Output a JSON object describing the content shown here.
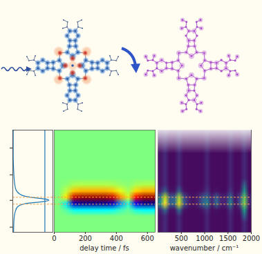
{
  "chart_data": [
    {
      "type": "line",
      "y": [
        0,
        0.5,
        0.8,
        1.0,
        1.1,
        1.15,
        1.2,
        1.25,
        1.3,
        1.35,
        1.4,
        1.5,
        1.7,
        2.0,
        2.5,
        3.0,
        3.5,
        4.0
      ],
      "series": [
        {
          "color": "#1f77b4",
          "values": [
            0.02,
            0.03,
            0.06,
            0.12,
            0.25,
            0.45,
            0.75,
            0.9,
            0.82,
            0.55,
            0.33,
            0.17,
            0.07,
            0.04,
            0.02,
            0.01,
            0.01,
            0.01
          ]
        },
        {
          "color": "#1f77b4",
          "values": [
            0.8,
            0.8,
            0.8,
            0.8,
            0.8,
            0.8,
            0.8,
            0.8,
            0.8,
            0.8,
            0.8,
            0.8,
            0.8,
            0.8,
            0.8,
            0.8,
            0.8,
            0.8
          ]
        }
      ],
      "xlim": [
        0,
        1
      ],
      "ylim": [
        0,
        4
      ],
      "yticks": [
        0.2,
        1.25,
        2.25,
        3.3
      ],
      "tick_labels": false,
      "reference_lines": [
        1.1,
        1.37
      ]
    },
    {
      "type": "heatmap",
      "x_label": "delay time / fs",
      "xlim": [
        0,
        650
      ],
      "xticks": [
        0,
        200,
        400,
        600
      ],
      "ylim": [
        0,
        4
      ],
      "tick_labels": "x",
      "color_range": [
        -1,
        1
      ],
      "cells": [
        [
          0,
          0,
          0,
          0,
          0,
          0,
          0,
          0,
          0,
          0,
          0,
          0,
          0
        ],
        [
          0,
          0,
          0,
          0,
          0,
          0,
          0,
          0,
          0,
          0,
          0,
          0,
          0
        ],
        [
          0,
          0,
          0,
          0,
          0,
          0,
          0,
          0,
          0,
          0,
          0,
          0,
          0
        ],
        [
          0,
          0,
          0,
          0,
          0,
          0,
          0,
          0,
          0,
          0,
          0,
          0,
          0
        ],
        [
          0,
          0,
          0,
          0,
          0,
          0,
          0,
          0,
          0,
          0,
          0,
          0,
          0
        ],
        [
          0,
          0,
          0,
          0,
          0,
          0,
          0,
          0,
          0,
          0,
          0,
          0,
          0
        ],
        [
          0,
          0,
          0,
          0,
          0,
          0,
          0,
          0,
          0,
          0,
          0,
          0,
          0
        ],
        [
          0,
          0,
          0,
          0,
          0,
          0,
          0,
          0,
          0,
          0,
          0,
          0,
          0
        ],
        [
          0,
          0.03,
          0.09,
          0.1,
          0.1,
          0.1,
          0.1,
          0.09,
          0.05,
          0.02,
          0.08,
          0.1,
          0.1
        ],
        [
          0,
          0.12,
          0.36,
          0.4,
          0.4,
          0.4,
          0.4,
          0.36,
          0.2,
          0.08,
          0.32,
          0.4,
          0.4
        ],
        [
          0,
          0.29,
          0.86,
          0.95,
          0.95,
          0.95,
          0.95,
          0.86,
          0.48,
          0.19,
          0.76,
          0.95,
          0.95
        ],
        [
          0,
          -0.29,
          -0.86,
          -0.95,
          -0.95,
          -0.95,
          -0.95,
          -0.86,
          -0.48,
          -0.19,
          -0.76,
          -0.95,
          -0.95
        ],
        [
          0,
          -0.08,
          -0.23,
          -0.25,
          -0.25,
          -0.25,
          -0.25,
          -0.23,
          -0.13,
          -0.05,
          -0.2,
          -0.25,
          -0.25
        ],
        [
          0,
          0,
          0,
          0,
          0,
          0,
          0,
          0,
          0,
          0,
          0,
          0,
          0
        ],
        [
          0,
          0,
          0,
          0,
          0,
          0,
          0,
          0,
          0,
          0,
          0,
          0,
          0
        ],
        [
          0,
          0,
          0,
          0,
          0,
          0,
          0,
          0,
          0,
          0,
          0,
          0,
          0
        ]
      ],
      "reference_lines": [
        1.1,
        1.37
      ]
    },
    {
      "type": "heatmap",
      "x_label": "wavenumber / cm⁻¹",
      "xlim": [
        0,
        2000
      ],
      "xticks": [
        500,
        1000,
        1500,
        2000
      ],
      "ylim": [
        0,
        4
      ],
      "tick_labels": "x",
      "color_range": [
        0,
        1
      ],
      "cells": [
        [
          0.05,
          0.12,
          0.03,
          0.03,
          0.12,
          0.03,
          0.03,
          0.03,
          0.03,
          0.03,
          0.1,
          0.03,
          0.03,
          0.03,
          0.03,
          0.1,
          0.03,
          0.03,
          0.12,
          0.03
        ],
        [
          0.05,
          0.12,
          0.03,
          0.03,
          0.12,
          0.03,
          0.03,
          0.03,
          0.03,
          0.03,
          0.1,
          0.03,
          0.03,
          0.03,
          0.03,
          0.1,
          0.03,
          0.03,
          0.12,
          0.03
        ],
        [
          0.05,
          0.12,
          0.03,
          0.03,
          0.12,
          0.03,
          0.03,
          0.03,
          0.03,
          0.03,
          0.1,
          0.03,
          0.03,
          0.03,
          0.03,
          0.1,
          0.03,
          0.03,
          0.12,
          0.03
        ],
        [
          0.05,
          0.12,
          0.03,
          0.03,
          0.12,
          0.03,
          0.03,
          0.03,
          0.03,
          0.03,
          0.1,
          0.03,
          0.03,
          0.03,
          0.03,
          0.1,
          0.03,
          0.03,
          0.12,
          0.03
        ],
        [
          0.05,
          0.12,
          0.03,
          0.03,
          0.12,
          0.03,
          0.03,
          0.03,
          0.03,
          0.03,
          0.1,
          0.03,
          0.03,
          0.03,
          0.03,
          0.1,
          0.03,
          0.03,
          0.12,
          0.03
        ],
        [
          0.05,
          0.12,
          0.03,
          0.03,
          0.12,
          0.03,
          0.03,
          0.03,
          0.03,
          0.03,
          0.1,
          0.03,
          0.03,
          0.03,
          0.03,
          0.1,
          0.03,
          0.03,
          0.12,
          0.03
        ],
        [
          0.05,
          0.12,
          0.03,
          0.03,
          0.12,
          0.03,
          0.03,
          0.03,
          0.03,
          0.03,
          0.1,
          0.03,
          0.03,
          0.03,
          0.03,
          0.1,
          0.03,
          0.03,
          0.12,
          0.03
        ],
        [
          0.05,
          0.12,
          0.03,
          0.03,
          0.12,
          0.03,
          0.03,
          0.03,
          0.03,
          0.03,
          0.1,
          0.03,
          0.03,
          0.03,
          0.03,
          0.1,
          0.03,
          0.03,
          0.12,
          0.03
        ],
        [
          0.05,
          0.12,
          0.03,
          0.03,
          0.12,
          0.03,
          0.03,
          0.03,
          0.03,
          0.03,
          0.1,
          0.03,
          0.03,
          0.03,
          0.03,
          0.1,
          0.03,
          0.03,
          0.3,
          0.03
        ],
        [
          0.1,
          0.3,
          0.05,
          0.05,
          0.3,
          0.05,
          0.03,
          0.03,
          0.03,
          0.05,
          0.15,
          0.03,
          0.05,
          0.03,
          0.03,
          0.15,
          0.03,
          0.05,
          0.5,
          0.03
        ],
        [
          0.4,
          0.9,
          0.3,
          0.3,
          0.85,
          0.25,
          0.1,
          0.05,
          0.1,
          0.25,
          0.35,
          0.1,
          0.3,
          0.1,
          0.1,
          0.35,
          0.05,
          0.2,
          0.75,
          0.1
        ],
        [
          0.5,
          1.0,
          0.3,
          0.35,
          0.95,
          0.3,
          0.1,
          0.05,
          0.1,
          0.3,
          0.45,
          0.1,
          0.35,
          0.1,
          0.1,
          0.45,
          0.05,
          0.25,
          0.8,
          0.1
        ],
        [
          0.1,
          0.35,
          0.05,
          0.05,
          0.35,
          0.05,
          0.03,
          0.03,
          0.03,
          0.05,
          0.15,
          0.03,
          0.05,
          0.03,
          0.03,
          0.15,
          0.03,
          0.05,
          0.55,
          0.03
        ],
        [
          0.05,
          0.12,
          0.03,
          0.03,
          0.12,
          0.03,
          0.03,
          0.03,
          0.03,
          0.03,
          0.1,
          0.03,
          0.03,
          0.03,
          0.03,
          0.1,
          0.03,
          0.03,
          0.3,
          0.03
        ],
        [
          0.05,
          0.12,
          0.03,
          0.03,
          0.12,
          0.03,
          0.03,
          0.03,
          0.03,
          0.03,
          0.1,
          0.03,
          0.03,
          0.03,
          0.03,
          0.1,
          0.03,
          0.03,
          0.12,
          0.03
        ],
        [
          0.05,
          0.12,
          0.03,
          0.03,
          0.12,
          0.03,
          0.03,
          0.03,
          0.03,
          0.03,
          0.1,
          0.03,
          0.03,
          0.03,
          0.03,
          0.1,
          0.03,
          0.03,
          0.12,
          0.03
        ]
      ],
      "reference_lines": [
        1.1,
        1.37
      ]
    }
  ]
}
